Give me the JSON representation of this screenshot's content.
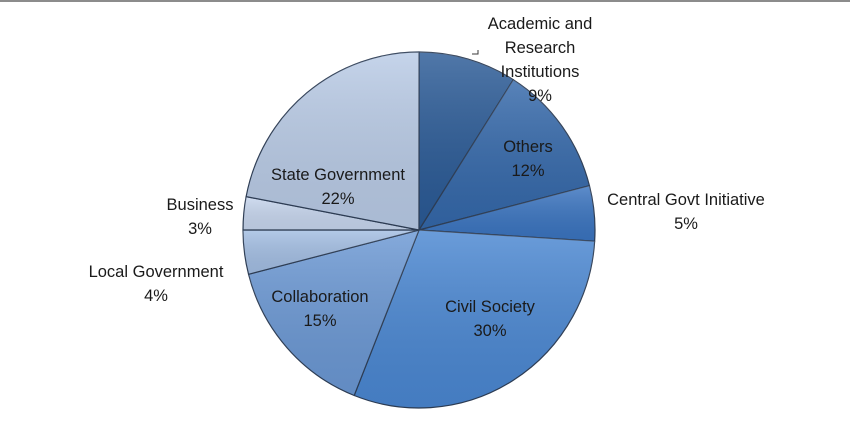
{
  "chart_data": {
    "type": "pie",
    "start_angle_deg": 0,
    "direction": "clockwise",
    "slices": [
      {
        "label": "Academic and Research Institutions",
        "label_lines": [
          "Academic and",
          "Research",
          "Institutions"
        ],
        "value": 9,
        "value_label": "9%",
        "color": "#2a5a96"
      },
      {
        "label": "Others",
        "label_lines": [
          "Others"
        ],
        "value": 12,
        "value_label": "12%",
        "color": "#3468aa"
      },
      {
        "label": "Central Govt Initiative",
        "label_lines": [
          "Central Govt Initiative"
        ],
        "value": 5,
        "value_label": "5%",
        "color": "#3a74c0"
      },
      {
        "label": "Civil Society",
        "label_lines": [
          "Civil Society"
        ],
        "value": 30,
        "value_label": "30%",
        "color": "#4a87d2"
      },
      {
        "label": "Collaboration",
        "label_lines": [
          "Collaboration"
        ],
        "value": 15,
        "value_label": "15%",
        "color": "#6b98d4"
      },
      {
        "label": "Local Government",
        "label_lines": [
          "Local Government"
        ],
        "value": 4,
        "value_label": "4%",
        "color": "#a3bee3"
      },
      {
        "label": "Business",
        "label_lines": [
          "Business"
        ],
        "value": 3,
        "value_label": "3%",
        "color": "#c7d6ee"
      },
      {
        "label": "State Government",
        "label_lines": [
          "State Government"
        ],
        "value": 22,
        "value_label": "22%",
        "color": "#b9cbe6"
      }
    ]
  }
}
